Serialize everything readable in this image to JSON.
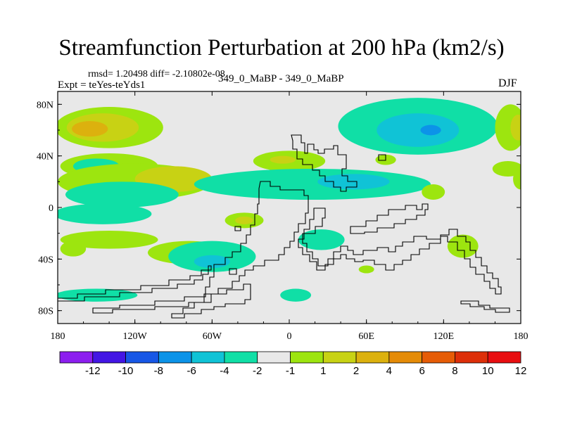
{
  "colors": {
    "background_field": "#e8e8e8",
    "frame": "#000000",
    "palette": [
      "#8c1eef",
      "#4316e4",
      "#1757e6",
      "#0c93e8",
      "#10c3d6",
      "#10dfa6",
      "#e8e8e8",
      "#9de50f",
      "#c8d214",
      "#dcb10e",
      "#e58b07",
      "#e65c06",
      "#dd2f09",
      "#e80e10"
    ]
  },
  "chart_data": {
    "type": "heatmap",
    "title": "Streamfunction Perturbation at 200 hPa (km2/s)",
    "stats_text": "rmsd= 1.20498 diff= -2.10802e-08",
    "experiment_text": "Expt = teYes-teYds1",
    "center_label": "349_0_MaBP - 349_0_MaBP",
    "season": "DJF",
    "x_axis": {
      "range": [
        -180,
        180
      ],
      "tick_values": [
        -180,
        -120,
        -60,
        0,
        60,
        120,
        180
      ],
      "tick_labels": [
        "180",
        "120W",
        "60W",
        "0",
        "60E",
        "120E",
        "180"
      ]
    },
    "y_axis": {
      "range": [
        -90,
        90
      ],
      "tick_values": [
        80,
        40,
        0,
        -40,
        -80
      ],
      "tick_labels": [
        "80N",
        "40N",
        "0",
        "40S",
        "80S"
      ]
    },
    "colorbar": {
      "labels": [
        "-12",
        "-10",
        "-8",
        "-6",
        "-4",
        "-2",
        "-1",
        "1",
        "2",
        "4",
        "6",
        "8",
        "10",
        "12"
      ]
    },
    "blobs": [
      {
        "lon": -140,
        "lat": 62,
        "rlon": 42,
        "rlat": 16,
        "level": 1
      },
      {
        "lon": -145,
        "lat": 62,
        "rlon": 28,
        "rlat": 11,
        "level": 2
      },
      {
        "lon": -155,
        "lat": 61,
        "rlon": 14,
        "rlat": 6,
        "level": 3
      },
      {
        "lon": -140,
        "lat": 32,
        "rlon": 38,
        "rlat": 10,
        "level": 1
      },
      {
        "lon": -150,
        "lat": 32,
        "rlon": 18,
        "rlat": 6,
        "level": -1
      },
      {
        "lon": -120,
        "lat": 20,
        "rlon": 60,
        "rlat": 14,
        "level": 1
      },
      {
        "lon": -90,
        "lat": 22,
        "rlon": 30,
        "rlat": 10,
        "level": 2
      },
      {
        "lon": -130,
        "lat": 10,
        "rlon": 44,
        "rlat": 10,
        "level": -1
      },
      {
        "lon": 0,
        "lat": 36,
        "rlon": 28,
        "rlat": 8,
        "level": 1
      },
      {
        "lon": -5,
        "lat": 37,
        "rlon": 10,
        "rlat": 3,
        "level": 2
      },
      {
        "lon": 18,
        "lat": 18,
        "rlon": 92,
        "rlat": 12,
        "level": -1
      },
      {
        "lon": 50,
        "lat": 20,
        "rlon": 28,
        "rlat": 6,
        "level": -2
      },
      {
        "lon": 100,
        "lat": 63,
        "rlon": 62,
        "rlat": 22,
        "level": -1
      },
      {
        "lon": 100,
        "lat": 60,
        "rlon": 32,
        "rlat": 13,
        "level": -2
      },
      {
        "lon": 110,
        "lat": 60,
        "rlon": 8,
        "rlat": 4,
        "level": -3
      },
      {
        "lon": 172,
        "lat": 62,
        "rlon": 12,
        "rlat": 18,
        "level": 1
      },
      {
        "lon": 178,
        "lat": 62,
        "rlon": 6,
        "rlat": 10,
        "level": 2
      },
      {
        "lon": 75,
        "lat": 37,
        "rlon": 8,
        "rlat": 4,
        "level": 1
      },
      {
        "lon": 170,
        "lat": 30,
        "rlon": 12,
        "rlat": 6,
        "level": 1
      },
      {
        "lon": 180,
        "lat": 22,
        "rlon": 6,
        "rlat": 8,
        "level": 1
      },
      {
        "lon": 112,
        "lat": 12,
        "rlon": 9,
        "rlat": 6,
        "level": 1
      },
      {
        "lon": -35,
        "lat": -10,
        "rlon": 15,
        "rlat": 6,
        "level": 1
      },
      {
        "lon": -35,
        "lat": -10,
        "rlon": 7,
        "rlat": 3,
        "level": 2
      },
      {
        "lon": -145,
        "lat": -5,
        "rlon": 38,
        "rlat": 8,
        "level": -1
      },
      {
        "lon": -140,
        "lat": -25,
        "rlon": 38,
        "rlat": 7,
        "level": 1
      },
      {
        "lon": -78,
        "lat": -35,
        "rlon": 32,
        "rlat": 9,
        "level": 1
      },
      {
        "lon": -60,
        "lat": -38,
        "rlon": 34,
        "rlat": 12,
        "level": -1
      },
      {
        "lon": -60,
        "lat": -42,
        "rlon": 14,
        "rlat": 5,
        "level": -2
      },
      {
        "lon": -168,
        "lat": -32,
        "rlon": 10,
        "rlat": 6,
        "level": 1
      },
      {
        "lon": 25,
        "lat": -25,
        "rlon": 18,
        "rlat": 8,
        "level": -1
      },
      {
        "lon": 60,
        "lat": -48,
        "rlon": 6,
        "rlat": 3,
        "level": 1
      },
      {
        "lon": 5,
        "lat": -68,
        "rlon": 12,
        "rlat": 5,
        "level": -1
      },
      {
        "lon": 135,
        "lat": -30,
        "rlon": 12,
        "rlat": 9,
        "level": 1
      },
      {
        "lon": -150,
        "lat": -68,
        "rlon": 32,
        "rlat": 5,
        "level": -1
      }
    ]
  }
}
